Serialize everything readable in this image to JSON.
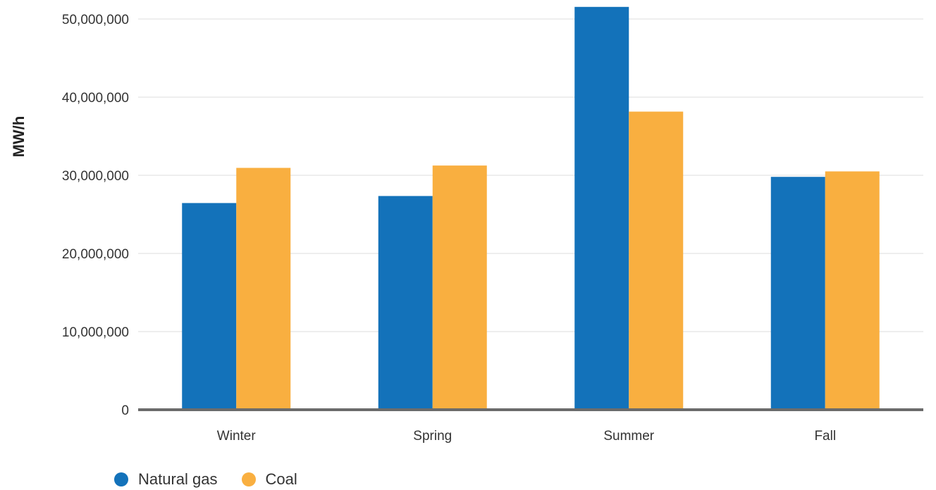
{
  "chart_data": {
    "type": "bar",
    "title": "",
    "xlabel": "",
    "ylabel": "MW/h",
    "categories": [
      "Winter",
      "Spring",
      "Summer",
      "Fall"
    ],
    "series": [
      {
        "name": "Natural gas",
        "color": "#1372BA",
        "values": [
          26450000,
          27350000,
          51550000,
          29800000
        ]
      },
      {
        "name": "Coal",
        "color": "#F9AF40",
        "values": [
          30950000,
          31250000,
          38150000,
          30500000
        ]
      }
    ],
    "ylim": [
      0,
      50000000
    ],
    "yticks": [
      0,
      10000000,
      20000000,
      30000000,
      40000000,
      50000000
    ],
    "ytick_labels": [
      "0",
      "10,000,000",
      "20,000,000",
      "30,000,000",
      "40,000,000",
      "50,000,000"
    ],
    "grid": true,
    "legend_position": "bottom-left"
  }
}
